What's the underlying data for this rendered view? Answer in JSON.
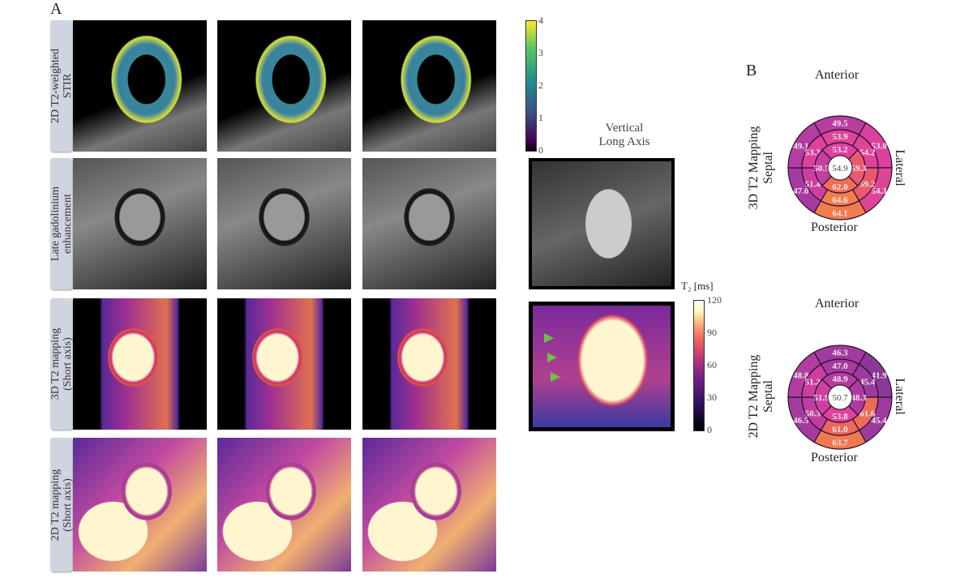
{
  "panel_a_label": "A",
  "panel_b_label": "B",
  "rows": [
    {
      "label": "2D T2-weighted STIR",
      "line1": "2D T2-weighted",
      "line2": "STIR"
    },
    {
      "label": "Late gadolinium enhancement",
      "line1": "Late gadolinium",
      "line2": "enhancement"
    },
    {
      "label": "3D T2 mapping (Short axis)",
      "line1": "3D T2 mapping",
      "line2": "(Short axis)"
    },
    {
      "label": "2D T2 mapping (Short axis)",
      "line1": "2D T2 mapping",
      "line2": "(Short axis)"
    }
  ],
  "vla_title_1": "Vertical",
  "vla_title_2": "Long Axis",
  "stir_colorbar": {
    "ticks": [
      "4",
      "3",
      "2",
      "1",
      "0"
    ],
    "range": [
      0,
      4
    ],
    "colormap": "viridis"
  },
  "t2_colorbar": {
    "title": "T₂ [ms]",
    "ticks": [
      "120",
      "90",
      "60",
      "30",
      "0"
    ],
    "range": [
      0,
      120
    ],
    "colormap": "magma"
  },
  "bullseyes": [
    {
      "side_label": "3D T2 Mapping",
      "anterior": "Anterior",
      "posterior": "Posterior",
      "septal": "Septal",
      "lateral": "Lateral",
      "basal": [
        "49.5",
        "53.0",
        "54.3",
        "64.1",
        "47.0",
        "49.1"
      ],
      "mid": [
        "53.9",
        "54.2",
        "59.2",
        "64.6",
        "51.4",
        "53.3"
      ],
      "apical": [
        "53.2",
        "59.3",
        "62.0",
        "50.5"
      ],
      "apex": "54.9"
    },
    {
      "side_label": "2D T2 Mapping",
      "anterior": "Anterior",
      "posterior": "Posterior",
      "septal": "Septal",
      "lateral": "Lateral",
      "basal": [
        "46.3",
        "41.9",
        "45.4",
        "63.7",
        "46.5",
        "48.8"
      ],
      "mid": [
        "47.0",
        "45.4",
        "61.6",
        "61.0",
        "50.3",
        "51.2"
      ],
      "apical": [
        "48.9",
        "48.3",
        "53.8",
        "51.9"
      ],
      "apex": "50.7"
    }
  ]
}
